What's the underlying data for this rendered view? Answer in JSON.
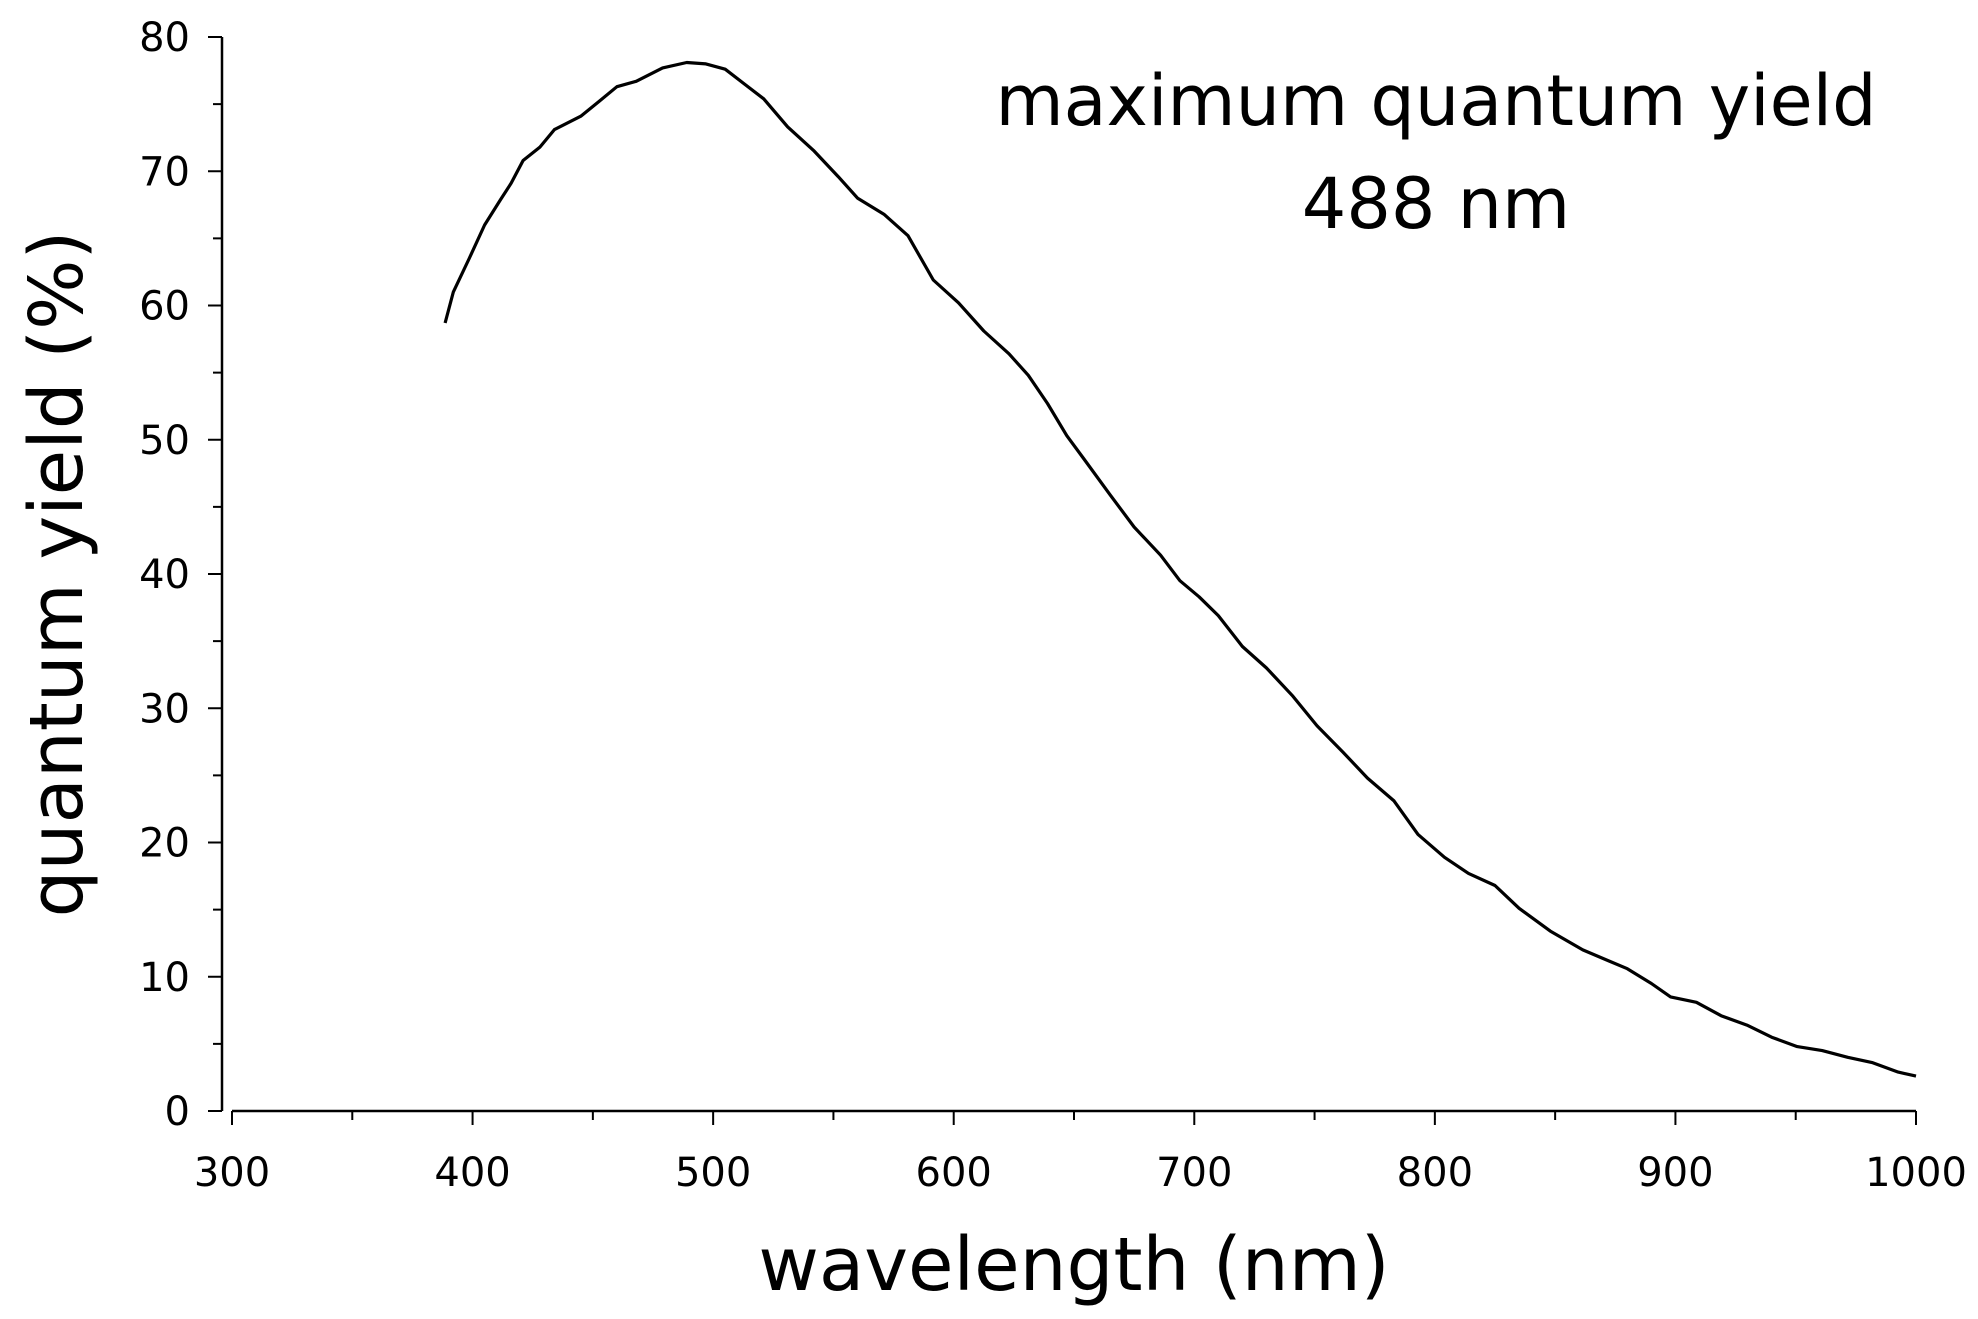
{
  "chart_data": {
    "type": "line",
    "title": "",
    "xlabel": "wavelength (nm)",
    "ylabel": "quantum yield (%)",
    "xlim": [
      300,
      1000
    ],
    "ylim": [
      0,
      80
    ],
    "x_ticks": [
      "300",
      "400",
      "500",
      "600",
      "700",
      "800",
      "900",
      "1000"
    ],
    "y_ticks": [
      "0",
      "10",
      "20",
      "30",
      "40",
      "50",
      "60",
      "70",
      "80"
    ],
    "grid": false,
    "annotation": {
      "line1": "maximum quantum yield",
      "line2": "488 nm"
    },
    "series": [
      {
        "name": "quantum yield",
        "color": "#000000",
        "x": [
          388.6,
          392,
          398.6,
          405,
          411.7,
          416,
          421,
          428,
          434,
          445,
          452.6,
          460,
          468,
          479,
          489,
          497,
          505,
          513,
          521,
          531,
          542,
          552,
          560,
          571,
          581,
          591.5,
          602,
          612.5,
          623,
          631,
          639,
          647,
          654,
          665,
          675,
          686,
          694,
          702,
          710,
          720,
          730,
          741,
          751,
          762,
          772,
          783,
          793,
          804,
          814,
          825,
          835,
          848,
          861.5,
          872,
          880,
          890,
          898,
          908.7,
          919,
          929.7,
          940,
          950.6,
          961,
          971.6,
          982,
          992.6,
          1000
        ],
        "y": [
          58.7,
          61,
          63.5,
          66,
          67.9,
          69.1,
          70.8,
          71.8,
          73.1,
          74.1,
          75.2,
          76.3,
          76.7,
          77.7,
          78.1,
          78,
          77.6,
          76.5,
          75.4,
          73.3,
          71.5,
          69.6,
          68,
          66.8,
          65.2,
          61.9,
          60.2,
          58.1,
          56.4,
          54.8,
          52.7,
          50.3,
          48.6,
          45.9,
          43.5,
          41.4,
          39.5,
          38.3,
          36.9,
          34.6,
          33,
          30.9,
          28.7,
          26.7,
          24.8,
          23.1,
          20.6,
          18.9,
          17.7,
          16.8,
          15.1,
          13.4,
          12,
          11.2,
          10.6,
          9.5,
          8.5,
          8.1,
          7.1,
          6.4,
          5.5,
          4.8,
          4.5,
          4,
          3.6,
          2.9,
          2.6
        ]
      }
    ]
  }
}
